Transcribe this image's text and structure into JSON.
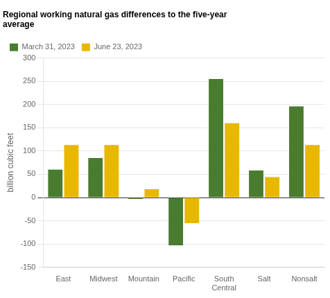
{
  "chart_data": {
    "type": "bar",
    "title": "Regional working natural gas differences to the five-year\naverage",
    "ylabel": "billion cubic feet",
    "categories": [
      "East",
      "Midwest",
      "Mountain",
      "Pacific",
      "South\nCentral",
      "Salt",
      "Nonsalt"
    ],
    "series": [
      {
        "name": "March 31, 2023",
        "color": "#4a7c2f",
        "values": [
          60,
          85,
          -3,
          -103,
          255,
          58,
          196
        ]
      },
      {
        "name": "June 23, 2023",
        "color": "#e8b800",
        "values": [
          113,
          113,
          18,
          -55,
          160,
          44,
          113
        ]
      }
    ],
    "ylim": [
      -150,
      300
    ],
    "yticks": [
      -150,
      -100,
      -50,
      0,
      50,
      100,
      150,
      200,
      250,
      300
    ],
    "grid": true,
    "legend": "upper left"
  }
}
